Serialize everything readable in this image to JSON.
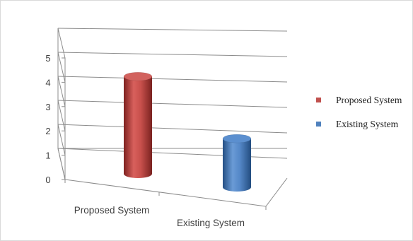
{
  "chart_data": {
    "type": "bar",
    "style": "3d-cylinder",
    "categories": [
      "Proposed System",
      "Existing System"
    ],
    "series": [
      {
        "name": "Proposed System",
        "values": [
          4.4,
          null
        ],
        "color": "#c0504d"
      },
      {
        "name": "Existing System",
        "values": [
          null,
          2.2
        ],
        "color": "#4f81bd"
      }
    ],
    "ylim": [
      0,
      5
    ],
    "yticks": [
      "0",
      "1",
      "2",
      "3",
      "4",
      "5"
    ],
    "grid": true,
    "legend_position": "right"
  }
}
